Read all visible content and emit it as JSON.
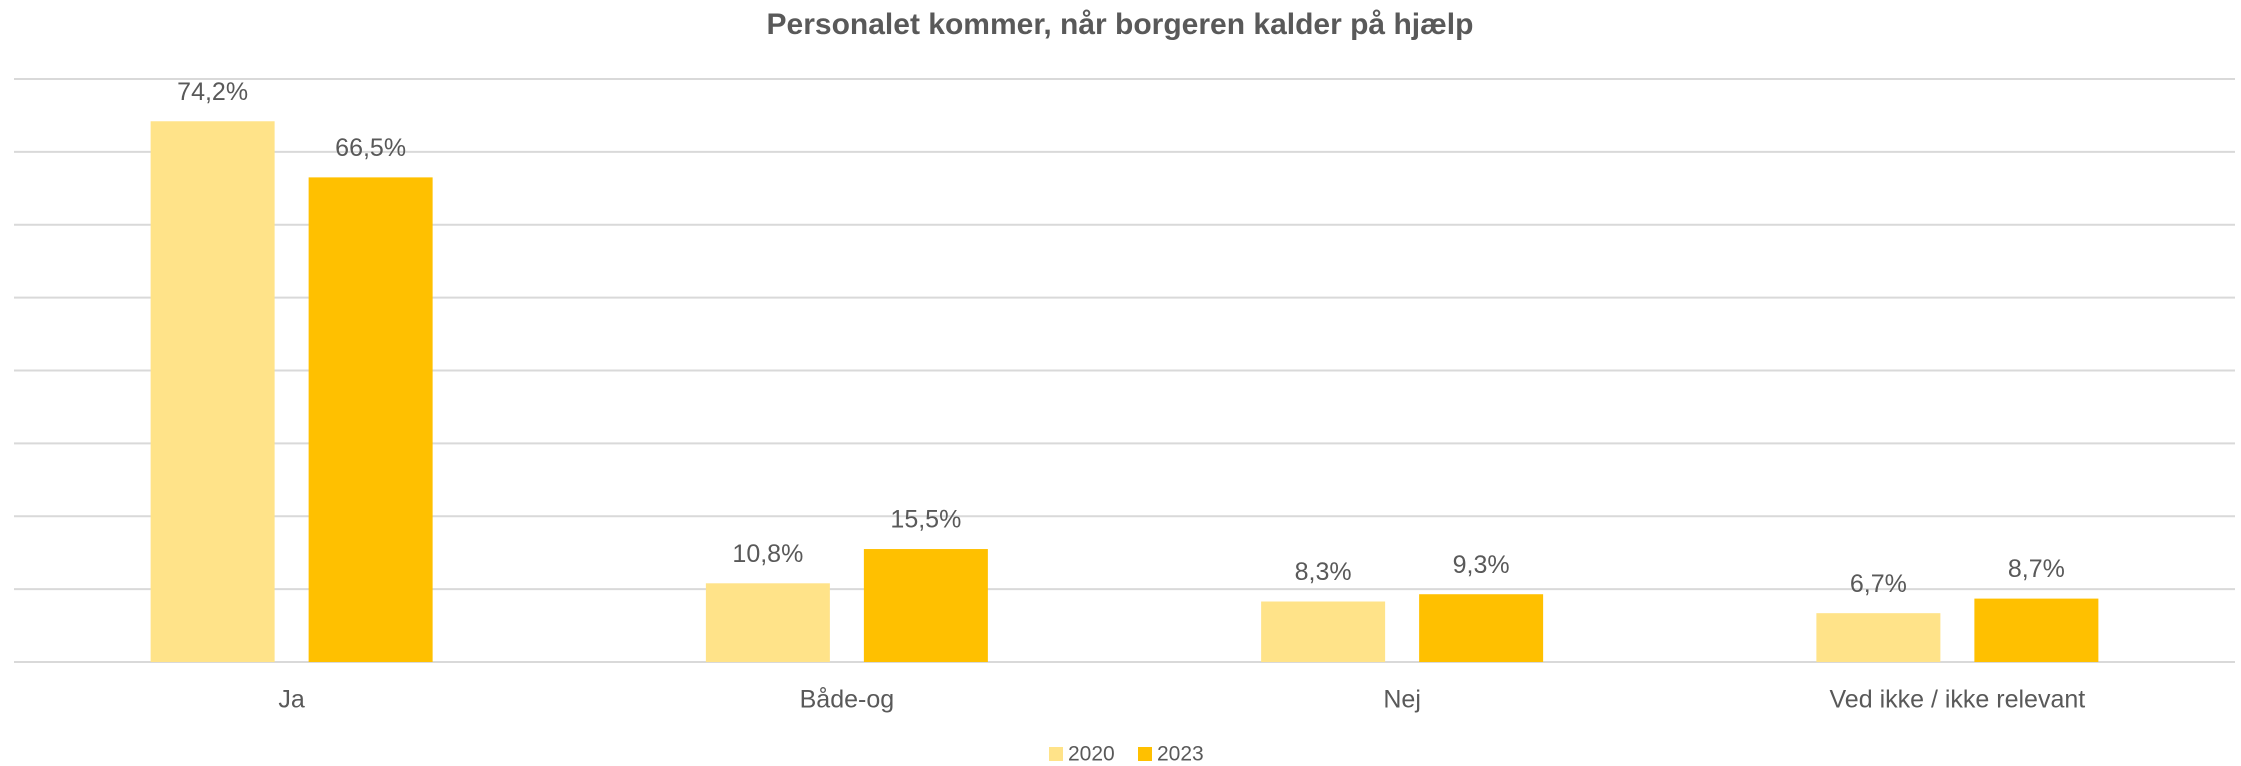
{
  "chart_data": {
    "type": "bar",
    "title": "Personalet kommer, når borgeren kalder på hjælp",
    "categories": [
      "Ja",
      "Både-og",
      "Nej",
      "Ved ikke / ikke relevant"
    ],
    "series": [
      {
        "name": "2020",
        "color": "#FFE389",
        "values": [
          74.2,
          10.8,
          8.3,
          6.7
        ],
        "value_labels": [
          "74,2%",
          "10,8%",
          "8,3%",
          "6,7%"
        ]
      },
      {
        "name": "2023",
        "color": "#FFC000",
        "values": [
          66.5,
          15.5,
          9.3,
          8.7
        ],
        "value_labels": [
          "66,5%",
          "15,5%",
          "9,3%",
          "8,7%"
        ]
      }
    ],
    "ylim": [
      0,
      80
    ],
    "yticks": [
      0,
      10,
      20,
      30,
      40,
      50,
      60,
      70,
      80
    ],
    "grid": true,
    "legend": "bottom"
  }
}
